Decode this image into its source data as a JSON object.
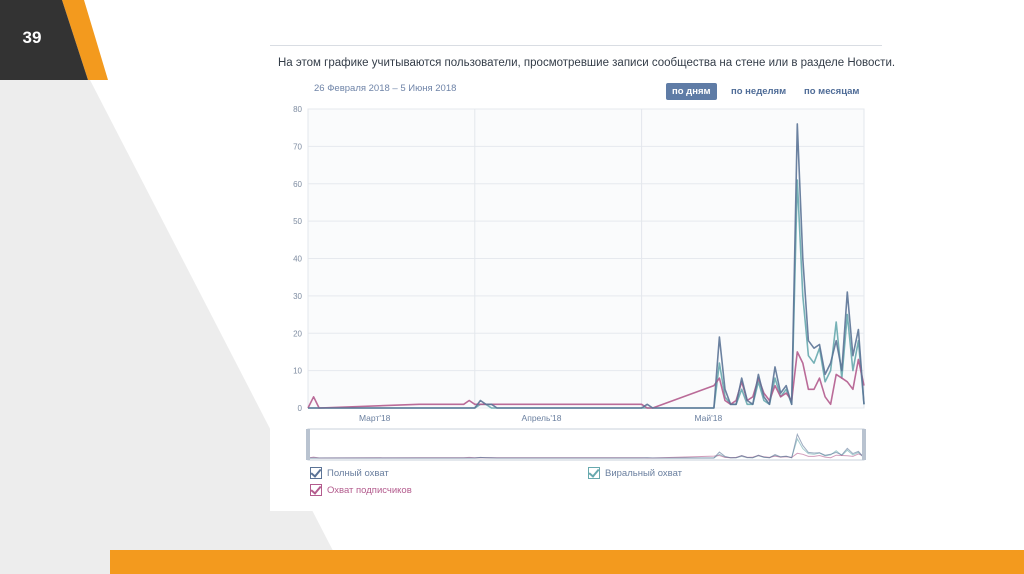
{
  "slide": {
    "number": "39"
  },
  "colors": {
    "orange": "#f39a1e",
    "dark": "#333333",
    "light_gray": "#ededed"
  },
  "panel": {
    "caption": "На этом графике учитываются пользователи, просмотревшие записи сообщества на стене или в разделе Новости.",
    "date_range": "26 Февраля 2018 – 5 Июня 2018",
    "period_buttons": [
      {
        "label": "по дням",
        "active": true
      },
      {
        "label": "по неделям",
        "active": false
      },
      {
        "label": "по месяцам",
        "active": false
      }
    ]
  },
  "chart_data": {
    "type": "line",
    "ylim": [
      0,
      80
    ],
    "yticks": [
      0,
      10,
      20,
      30,
      40,
      50,
      60,
      70,
      80
    ],
    "x_tick_labels": [
      {
        "label": "Март'18",
        "day": 12
      },
      {
        "label": "Апрель'18",
        "day": 42
      },
      {
        "label": "Май'18",
        "day": 72
      }
    ],
    "x_day_range": [
      0,
      100
    ],
    "grid": true,
    "legend_placement": "bottom",
    "series": [
      {
        "name": "Полный охват",
        "color": "#5b7396",
        "points": [
          [
            0,
            0
          ],
          [
            1,
            0
          ],
          [
            2,
            0
          ],
          [
            30,
            0
          ],
          [
            31,
            2
          ],
          [
            32,
            1
          ],
          [
            33,
            1
          ],
          [
            34,
            0
          ],
          [
            60,
            0
          ],
          [
            61,
            1
          ],
          [
            62,
            0
          ],
          [
            73,
            0
          ],
          [
            74,
            19
          ],
          [
            75,
            5
          ],
          [
            76,
            1
          ],
          [
            77,
            1
          ],
          [
            78,
            8
          ],
          [
            79,
            2
          ],
          [
            80,
            1
          ],
          [
            81,
            9
          ],
          [
            82,
            3
          ],
          [
            83,
            1
          ],
          [
            84,
            11
          ],
          [
            85,
            4
          ],
          [
            86,
            6
          ],
          [
            87,
            1
          ],
          [
            88,
            76
          ],
          [
            89,
            40
          ],
          [
            90,
            18
          ],
          [
            91,
            16
          ],
          [
            92,
            17
          ],
          [
            93,
            9
          ],
          [
            94,
            12
          ],
          [
            95,
            18
          ],
          [
            96,
            10
          ],
          [
            97,
            31
          ],
          [
            98,
            14
          ],
          [
            99,
            21
          ],
          [
            100,
            1
          ]
        ]
      },
      {
        "name": "Виральный охват",
        "color": "#67a9ae",
        "points": [
          [
            0,
            0
          ],
          [
            1,
            0
          ],
          [
            2,
            0
          ],
          [
            30,
            0
          ],
          [
            31,
            1
          ],
          [
            32,
            1
          ],
          [
            33,
            0
          ],
          [
            60,
            0
          ],
          [
            61,
            0
          ],
          [
            73,
            0
          ],
          [
            74,
            12
          ],
          [
            75,
            3
          ],
          [
            76,
            1
          ],
          [
            77,
            1
          ],
          [
            78,
            5
          ],
          [
            79,
            1
          ],
          [
            80,
            1
          ],
          [
            81,
            7
          ],
          [
            82,
            2
          ],
          [
            83,
            1
          ],
          [
            84,
            8
          ],
          [
            85,
            3
          ],
          [
            86,
            5
          ],
          [
            87,
            1
          ],
          [
            88,
            61
          ],
          [
            89,
            30
          ],
          [
            90,
            14
          ],
          [
            91,
            12
          ],
          [
            92,
            16
          ],
          [
            93,
            7
          ],
          [
            94,
            10
          ],
          [
            95,
            23
          ],
          [
            96,
            8
          ],
          [
            97,
            25
          ],
          [
            98,
            10
          ],
          [
            99,
            18
          ],
          [
            100,
            1
          ]
        ]
      },
      {
        "name": "Охват подписчиков",
        "color": "#b35b8d",
        "points": [
          [
            0,
            0
          ],
          [
            1,
            3
          ],
          [
            2,
            0
          ],
          [
            20,
            1
          ],
          [
            28,
            1
          ],
          [
            29,
            2
          ],
          [
            30,
            1
          ],
          [
            60,
            1
          ],
          [
            61,
            0
          ],
          [
            62,
            0
          ],
          [
            73,
            6
          ],
          [
            74,
            8
          ],
          [
            75,
            2
          ],
          [
            76,
            1
          ],
          [
            77,
            2
          ],
          [
            78,
            7
          ],
          [
            79,
            2
          ],
          [
            80,
            3
          ],
          [
            81,
            8
          ],
          [
            82,
            4
          ],
          [
            83,
            2
          ],
          [
            84,
            6
          ],
          [
            85,
            3
          ],
          [
            86,
            4
          ],
          [
            87,
            2
          ],
          [
            88,
            15
          ],
          [
            89,
            12
          ],
          [
            90,
            5
          ],
          [
            91,
            5
          ],
          [
            92,
            8
          ],
          [
            93,
            3
          ],
          [
            94,
            1
          ],
          [
            95,
            9
          ],
          [
            96,
            8
          ],
          [
            97,
            7
          ],
          [
            98,
            5
          ],
          [
            99,
            13
          ],
          [
            100,
            6
          ]
        ]
      }
    ]
  }
}
